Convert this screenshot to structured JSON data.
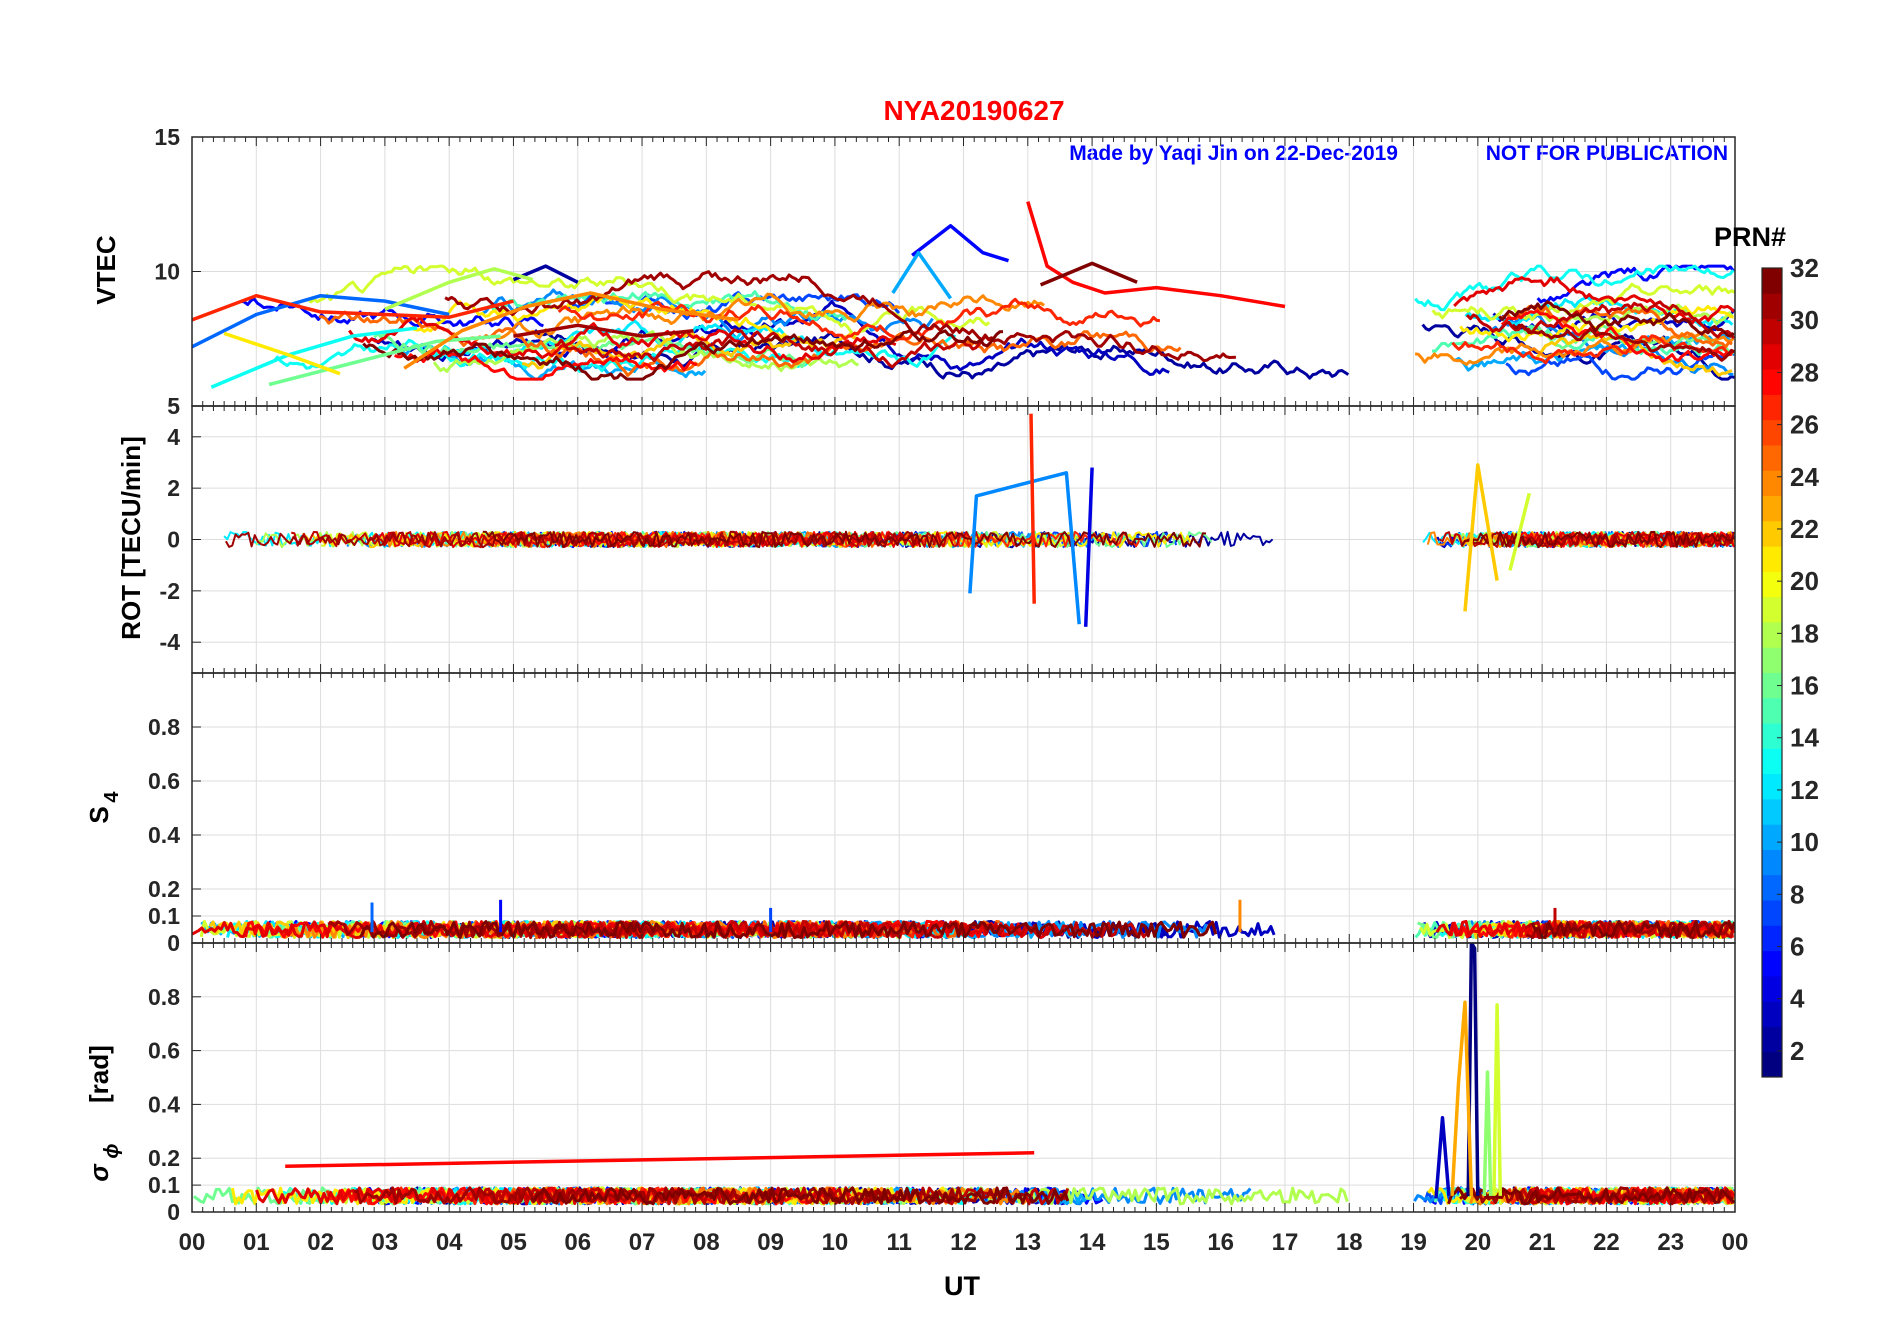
{
  "figure": {
    "title_station": "NYA",
    "title_date": "20190627",
    "credit": "Made by Yaqi Jin on 22-Dec-2019",
    "notice": "NOT FOR PUBLICATION",
    "colors": {
      "title": "#ff0000",
      "credit": "#0000ff"
    }
  },
  "chart_data": [
    {
      "type": "line",
      "panel": "vtec",
      "ylabel": "VTEC",
      "ylim": [
        5,
        15
      ],
      "yticks": [
        5,
        10,
        15
      ],
      "xlim": [
        0,
        24
      ],
      "grid": true,
      "data_gap_hours": [
        18.0,
        19.0
      ],
      "series": [
        {
          "prn": 2,
          "points": [
            [
              5.0,
              9.7
            ],
            [
              5.5,
              10.2
            ],
            [
              6.0,
              9.6
            ]
          ]
        },
        {
          "prn": 5,
          "points": [
            [
              11.2,
              10.6
            ],
            [
              11.8,
              11.7
            ],
            [
              12.3,
              10.7
            ],
            [
              12.7,
              10.4
            ]
          ]
        },
        {
          "prn": 8,
          "points": [
            [
              0.0,
              7.2
            ],
            [
              1.0,
              8.4
            ],
            [
              2.0,
              9.1
            ],
            [
              3.0,
              8.9
            ],
            [
              4.0,
              8.4
            ]
          ]
        },
        {
          "prn": 10,
          "points": [
            [
              10.9,
              9.2
            ],
            [
              11.3,
              10.7
            ],
            [
              11.8,
              9.0
            ]
          ]
        },
        {
          "prn": 13,
          "points": [
            [
              0.3,
              5.7
            ],
            [
              1.5,
              6.9
            ],
            [
              2.5,
              7.6
            ],
            [
              3.5,
              7.9
            ]
          ]
        },
        {
          "prn": 16,
          "points": [
            [
              1.2,
              5.8
            ],
            [
              2.5,
              6.6
            ],
            [
              3.8,
              7.4
            ],
            [
              4.8,
              7.6
            ]
          ]
        },
        {
          "prn": 18,
          "points": [
            [
              3.0,
              8.6
            ],
            [
              4.0,
              9.6
            ],
            [
              4.7,
              10.1
            ],
            [
              5.3,
              9.7
            ]
          ]
        },
        {
          "prn": 21,
          "points": [
            [
              0.5,
              7.7
            ],
            [
              1.5,
              6.9
            ],
            [
              2.3,
              6.2
            ]
          ]
        },
        {
          "prn": 24,
          "points": [
            [
              3.3,
              6.4
            ],
            [
              4.2,
              7.8
            ],
            [
              5.2,
              8.7
            ],
            [
              6.2,
              9.2
            ],
            [
              7.3,
              8.6
            ],
            [
              8.5,
              8.2
            ]
          ]
        },
        {
          "prn": 27,
          "points": [
            [
              0.0,
              8.2
            ],
            [
              1.0,
              9.1
            ],
            [
              2.0,
              8.5
            ],
            [
              3.0,
              8.4
            ],
            [
              4.0,
              8.3
            ],
            [
              5.0,
              8.9
            ]
          ]
        },
        {
          "prn": 28,
          "points": [
            [
              13.0,
              12.6
            ],
            [
              13.3,
              10.2
            ],
            [
              13.7,
              9.6
            ],
            [
              14.2,
              9.2
            ],
            [
              15.0,
              9.4
            ],
            [
              16.0,
              9.1
            ],
            [
              17.0,
              8.7
            ]
          ]
        },
        {
          "prn": 31,
          "points": [
            [
              5.0,
              7.6
            ],
            [
              6.0,
              8.0
            ],
            [
              7.0,
              7.6
            ],
            [
              7.8,
              7.8
            ]
          ]
        },
        {
          "prn": 32,
          "points": [
            [
              13.2,
              9.5
            ],
            [
              14.0,
              10.3
            ],
            [
              14.7,
              9.6
            ]
          ]
        }
      ]
    },
    {
      "type": "line",
      "panel": "rot",
      "ylabel": "ROT [TECU/min]",
      "ylim": [
        -5.2,
        5.2
      ],
      "yticks": [
        -4,
        -2,
        0,
        2,
        4
      ],
      "xlim": [
        0,
        24
      ],
      "grid": true,
      "data_gap_hours": [
        18.0,
        19.0
      ],
      "series": [
        {
          "prn": 4,
          "points": [
            [
              13.9,
              -3.4
            ],
            [
              14.0,
              2.8
            ]
          ]
        },
        {
          "prn": 9,
          "points": [
            [
              12.1,
              -2.1
            ],
            [
              12.2,
              1.7
            ],
            [
              13.6,
              2.6
            ],
            [
              13.8,
              -3.3
            ]
          ]
        },
        {
          "prn": 22,
          "points": [
            [
              19.8,
              -2.8
            ],
            [
              20.0,
              2.9
            ],
            [
              20.3,
              -1.6
            ]
          ]
        },
        {
          "prn": 27,
          "points": [
            [
              13.05,
              4.9
            ],
            [
              13.1,
              -2.5
            ]
          ]
        },
        {
          "prn": 19,
          "points": [
            [
              20.8,
              1.8
            ],
            [
              20.5,
              -1.2
            ]
          ]
        }
      ]
    },
    {
      "type": "line",
      "panel": "s4",
      "ylabel_main": "S",
      "ylabel_sub": "4",
      "ylim": [
        0,
        1
      ],
      "yticks": [
        0,
        0.1,
        0.2,
        0.4,
        0.6,
        0.8
      ],
      "xlim": [
        0,
        24
      ],
      "grid": true,
      "data_gap_hours": [
        18.0,
        19.0
      ],
      "series": [
        {
          "prn": 5,
          "points": [
            [
              4.8,
              0.16
            ]
          ]
        },
        {
          "prn": 8,
          "points": [
            [
              2.8,
              0.15
            ]
          ]
        },
        {
          "prn": 7,
          "points": [
            [
              9.0,
              0.13
            ]
          ]
        },
        {
          "prn": 24,
          "points": [
            [
              16.3,
              0.16
            ]
          ]
        },
        {
          "prn": 30,
          "points": [
            [
              21.2,
              0.13
            ]
          ]
        }
      ]
    },
    {
      "type": "line",
      "panel": "sigma_phi",
      "ylabel_main": "σ",
      "ylabel_sub": "ϕ",
      "ylabel_unit": "[rad]",
      "ylim": [
        0,
        1
      ],
      "yticks": [
        0,
        0.1,
        0.2,
        0.4,
        0.6,
        0.8
      ],
      "xlim": [
        0,
        24
      ],
      "grid": true,
      "data_gap_hours": [
        18.0,
        19.0
      ],
      "series": [
        {
          "prn": 3,
          "points": [
            [
              19.35,
              0.05
            ],
            [
              19.45,
              0.35
            ],
            [
              19.55,
              0.06
            ]
          ]
        },
        {
          "prn": 1,
          "points": [
            [
              19.85,
              0.06
            ],
            [
              19.9,
              1.0
            ],
            [
              19.95,
              0.98
            ],
            [
              20.0,
              0.06
            ]
          ]
        },
        {
          "prn": 23,
          "points": [
            [
              19.6,
              0.06
            ],
            [
              19.7,
              0.48
            ],
            [
              19.8,
              0.78
            ],
            [
              19.9,
              0.06
            ]
          ]
        },
        {
          "prn": 19,
          "points": [
            [
              20.25,
              0.06
            ],
            [
              20.3,
              0.77
            ],
            [
              20.35,
              0.06
            ]
          ]
        },
        {
          "prn": 17,
          "points": [
            [
              20.1,
              0.06
            ],
            [
              20.15,
              0.52
            ],
            [
              20.2,
              0.06
            ]
          ]
        },
        {
          "prn": 28,
          "points": [
            [
              1.45,
              0.17
            ],
            [
              13.1,
              0.22
            ]
          ]
        }
      ]
    }
  ],
  "x_axis": {
    "label": "UT",
    "tick_labels": [
      "00",
      "01",
      "02",
      "03",
      "04",
      "05",
      "06",
      "07",
      "08",
      "09",
      "10",
      "11",
      "12",
      "13",
      "14",
      "15",
      "16",
      "17",
      "18",
      "19",
      "20",
      "21",
      "22",
      "23",
      "00"
    ]
  },
  "colorbar": {
    "title": "PRN#",
    "range": [
      1,
      32
    ],
    "tick_labels": [
      "2",
      "4",
      "6",
      "8",
      "10",
      "12",
      "14",
      "16",
      "18",
      "20",
      "22",
      "24",
      "26",
      "28",
      "30",
      "32"
    ],
    "colormap": "jet",
    "levels": 32
  }
}
